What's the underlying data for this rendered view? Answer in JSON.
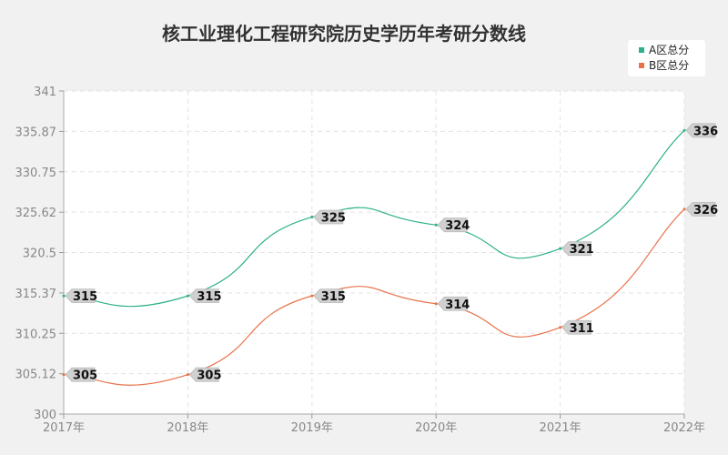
{
  "chart_data": {
    "type": "line",
    "title": "核工业理化工程研究院历史学历年考研分数线",
    "categories": [
      "2017年",
      "2018年",
      "2019年",
      "2020年",
      "2021年",
      "2022年"
    ],
    "series": [
      {
        "name": "A区总分",
        "color": "#2db08b",
        "values": [
          315,
          315,
          325,
          324,
          321,
          336
        ]
      },
      {
        "name": "B区总分",
        "color": "#e8734a",
        "values": [
          305,
          305,
          315,
          314,
          311,
          326
        ]
      }
    ],
    "yticks": [
      "300",
      "305.12",
      "310.25",
      "315.37",
      "320.5",
      "325.62",
      "330.75",
      "335.87",
      "341"
    ],
    "ylim": [
      300,
      341
    ],
    "xlabel": "",
    "ylabel": "",
    "grid": true,
    "legend_position": "top-right",
    "curve": "smooth"
  }
}
